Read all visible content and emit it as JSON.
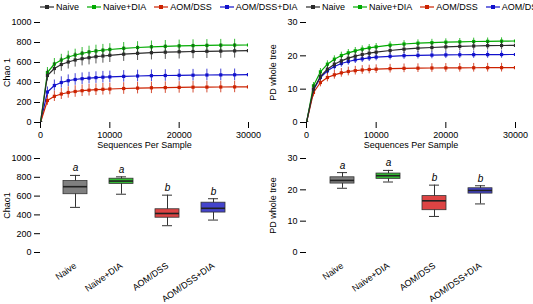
{
  "chart_data": [
    {
      "type": "line",
      "x_label": "Sequences Per Sample",
      "y_label": "Chao 1",
      "x": [
        0,
        1000,
        2000,
        3000,
        4000,
        5000,
        6000,
        7000,
        8000,
        9000,
        10000,
        12000,
        14000,
        16000,
        18000,
        20000,
        22000,
        24000,
        26000,
        28000,
        30000
      ],
      "series": [
        {
          "name": "Naive",
          "color": "#2b2b2b",
          "values": [
            0,
            470,
            540,
            580,
            605,
            625,
            638,
            648,
            658,
            665,
            672,
            683,
            692,
            698,
            703,
            707,
            710,
            712,
            714,
            716,
            718
          ],
          "errors": [
            0,
            55,
            62,
            68,
            70,
            71,
            72,
            72,
            72,
            72,
            72,
            72,
            72,
            72,
            72,
            72,
            72,
            72,
            72,
            72,
            72
          ]
        },
        {
          "name": "Naive+DIA",
          "color": "#00aa00",
          "values": [
            0,
            500,
            585,
            625,
            655,
            675,
            692,
            705,
            715,
            723,
            730,
            742,
            750,
            757,
            762,
            766,
            769,
            771,
            773,
            774,
            775
          ],
          "errors": [
            0,
            50,
            55,
            57,
            58,
            58,
            58,
            58,
            58,
            58,
            58,
            58,
            58,
            58,
            58,
            58,
            58,
            58,
            58,
            58,
            58
          ]
        },
        {
          "name": "AOM/DSS",
          "color": "#cc2200",
          "values": [
            0,
            220,
            262,
            285,
            300,
            310,
            318,
            323,
            328,
            332,
            335,
            340,
            344,
            347,
            349,
            351,
            353,
            354,
            355,
            356,
            357
          ],
          "errors": [
            0,
            48,
            52,
            55,
            57,
            58,
            58,
            58,
            58,
            58,
            58,
            58,
            58,
            58,
            58,
            58,
            58,
            58,
            58,
            58,
            58
          ]
        },
        {
          "name": "AOM/DSS+DIA",
          "color": "#1111cc",
          "values": [
            0,
            305,
            370,
            400,
            418,
            430,
            438,
            444,
            449,
            453,
            456,
            461,
            465,
            468,
            470,
            472,
            473,
            475,
            476,
            477,
            478
          ],
          "errors": [
            0,
            50,
            55,
            57,
            58,
            58,
            58,
            58,
            58,
            58,
            58,
            58,
            58,
            58,
            58,
            58,
            58,
            58,
            58,
            58,
            58
          ]
        }
      ],
      "xlim": [
        0,
        30000
      ],
      "xticks": [
        0,
        10000,
        20000,
        30000
      ],
      "ylim": [
        0,
        1000
      ],
      "yticks": [
        0,
        200,
        400,
        600,
        800,
        1000
      ],
      "marker": "square",
      "line_style": "solid",
      "legend": "upper left",
      "grid": false
    },
    {
      "type": "line",
      "x_label": "Sequences Per Sample",
      "y_label": "PD whole tree",
      "x": [
        0,
        1000,
        2000,
        3000,
        4000,
        5000,
        6000,
        7000,
        8000,
        9000,
        10000,
        12000,
        14000,
        16000,
        18000,
        20000,
        22000,
        24000,
        26000,
        28000,
        30000
      ],
      "series": [
        {
          "name": "Naive",
          "color": "#2b2b2b",
          "values": [
            0,
            10.0,
            13.8,
            16.0,
            17.5,
            18.5,
            19.3,
            19.9,
            20.4,
            20.8,
            21.1,
            21.6,
            22.0,
            22.3,
            22.5,
            22.7,
            22.85,
            22.95,
            23.05,
            23.1,
            23.15
          ],
          "errors": [
            0,
            1.3,
            1.3,
            1.3,
            1.3,
            1.3,
            1.3,
            1.3,
            1.3,
            1.3,
            1.3,
            1.3,
            1.3,
            1.3,
            1.3,
            1.3,
            1.3,
            1.3,
            1.3,
            1.3,
            1.3
          ]
        },
        {
          "name": "Naive+DIA",
          "color": "#00aa00",
          "values": [
            0,
            11.0,
            15.2,
            17.5,
            19.0,
            20.1,
            20.9,
            21.5,
            22.0,
            22.4,
            22.7,
            23.2,
            23.55,
            23.8,
            23.95,
            24.1,
            24.2,
            24.3,
            24.35,
            24.4,
            24.45
          ],
          "errors": [
            0,
            1.0,
            1.0,
            1.0,
            1.0,
            1.0,
            1.0,
            1.0,
            1.0,
            1.0,
            1.0,
            1.0,
            1.0,
            1.0,
            1.0,
            1.0,
            1.0,
            1.0,
            1.0,
            1.0,
            1.0
          ]
        },
        {
          "name": "AOM/DSS",
          "color": "#cc2200",
          "values": [
            0,
            9.0,
            12.0,
            13.5,
            14.3,
            14.9,
            15.3,
            15.55,
            15.75,
            15.9,
            16.0,
            16.15,
            16.25,
            16.3,
            16.35,
            16.38,
            16.4,
            16.42,
            16.44,
            16.45,
            16.46
          ],
          "errors": [
            0,
            1.3,
            1.3,
            1.3,
            1.3,
            1.3,
            1.3,
            1.3,
            1.3,
            1.3,
            1.3,
            1.3,
            1.3,
            1.3,
            1.3,
            1.3,
            1.3,
            1.3,
            1.3,
            1.3,
            1.3
          ]
        },
        {
          "name": "AOM/DSS+DIA",
          "color": "#1111cc",
          "values": [
            0,
            9.8,
            13.5,
            15.5,
            16.8,
            17.7,
            18.3,
            18.8,
            19.1,
            19.4,
            19.6,
            19.85,
            20.05,
            20.15,
            20.22,
            20.28,
            20.32,
            20.35,
            20.37,
            20.39,
            20.4
          ],
          "errors": [
            0,
            1.1,
            1.1,
            1.1,
            1.1,
            1.1,
            1.1,
            1.1,
            1.1,
            1.1,
            1.1,
            1.1,
            1.1,
            1.1,
            1.1,
            1.1,
            1.1,
            1.1,
            1.1,
            1.1,
            1.1
          ]
        }
      ],
      "xlim": [
        0,
        30000
      ],
      "xticks": [
        0,
        10000,
        20000,
        30000
      ],
      "ylim": [
        0,
        30
      ],
      "yticks": [
        0,
        10,
        20,
        30
      ],
      "marker": "square",
      "line_style": "solid",
      "legend": "upper left",
      "grid": false
    },
    {
      "type": "box",
      "y_label": "Chao1",
      "categories": [
        "Naive",
        "Naive+DIA",
        "AOM/DSS",
        "AOM/DSS+DIA"
      ],
      "stats": [
        {
          "q1": 620,
          "median": 700,
          "q3": 760,
          "whislo": 480,
          "whishi": 820
        },
        {
          "q1": 730,
          "median": 760,
          "q3": 785,
          "whislo": 620,
          "whishi": 805
        },
        {
          "q1": 370,
          "median": 415,
          "q3": 460,
          "whislo": 285,
          "whishi": 610
        },
        {
          "q1": 425,
          "median": 470,
          "q3": 530,
          "whislo": 345,
          "whishi": 572
        }
      ],
      "annotations": [
        "a",
        "a",
        "b",
        "b"
      ],
      "colors": [
        "#808080",
        "#33bb33",
        "#dd4444",
        "#4444cc"
      ],
      "ylim": [
        0,
        1000
      ],
      "yticks": [
        0,
        200,
        400,
        600,
        800,
        1000
      ],
      "grid": false
    },
    {
      "type": "box",
      "y_label": "PD whole tree",
      "categories": [
        "Naive",
        "Naive+DIA",
        "AOM/DSS",
        "AOM/DSS+DIA"
      ],
      "stats": [
        {
          "q1": 22.0,
          "median": 23.0,
          "q3": 24.0,
          "whislo": 20.5,
          "whishi": 25.5
        },
        {
          "q1": 23.5,
          "median": 24.5,
          "q3": 25.2,
          "whislo": 22.5,
          "whishi": 26.2
        },
        {
          "q1": 13.5,
          "median": 16.5,
          "q3": 18.0,
          "whislo": 11.5,
          "whishi": 21.5
        },
        {
          "q1": 18.8,
          "median": 19.8,
          "q3": 20.5,
          "whislo": 15.5,
          "whishi": 21.3
        }
      ],
      "annotations": [
        "a",
        "a",
        "b",
        "b"
      ],
      "colors": [
        "#808080",
        "#33bb33",
        "#dd4444",
        "#4444cc"
      ],
      "ylim": [
        0,
        30
      ],
      "yticks": [
        0,
        10,
        20,
        30
      ],
      "grid": false
    }
  ]
}
